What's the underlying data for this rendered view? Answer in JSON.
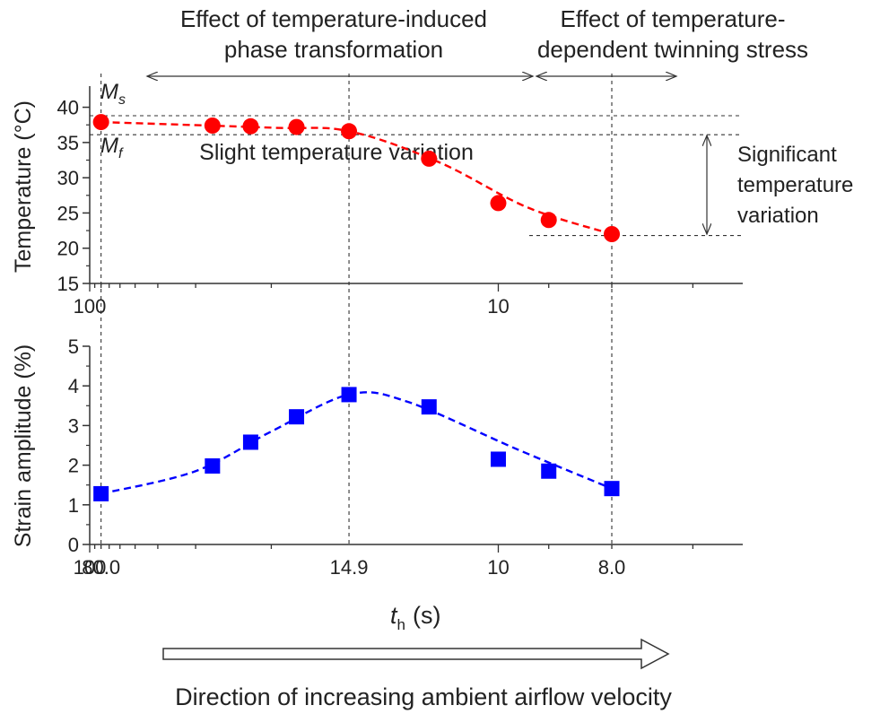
{
  "annotations": {
    "left_region": [
      "Effect of temperature-induced",
      "phase transformation"
    ],
    "right_region": [
      "Effect of temperature-",
      "dependent twinning stress"
    ],
    "ms_label": "M",
    "ms_sub": "s",
    "mf_label": "M",
    "mf_sub": "f",
    "slight": "Slight temperature variation",
    "significant": [
      "Significant",
      "temperature",
      "variation"
    ],
    "direction": "Direction of increasing ambient airflow velocity"
  },
  "chart_data": [
    {
      "type": "line",
      "ylabel": "Temperature (°C)",
      "xscale": "reciprocal",
      "xlim": [
        100,
        6.5
      ],
      "ylim": [
        15,
        43
      ],
      "yticks": [
        15,
        20,
        25,
        30,
        35,
        40
      ],
      "xtick_labels": [
        {
          "x": 100,
          "label": "100"
        },
        {
          "x": 10,
          "label": "10"
        }
      ],
      "series": [
        {
          "marker": "circle",
          "color": "#ff0000",
          "x": [
            80.0,
            27.0,
            22.0,
            18.0,
            14.9,
            11.8,
            10.0,
            9.0,
            8.0
          ],
          "y": [
            37.9,
            37.4,
            37.3,
            37.2,
            36.6,
            32.7,
            26.4,
            24.0,
            22.0
          ]
        }
      ],
      "reference_lines": {
        "Ms": 38.8,
        "Mf": 36.1,
        "min": 21.8
      }
    },
    {
      "type": "line",
      "ylabel": "Strain amplitude (%)",
      "xlabel": "t",
      "xlabel_sub": "h",
      "xlabel_unit": "(s)",
      "xscale": "reciprocal",
      "xlim": [
        100,
        6.5
      ],
      "ylim": [
        0,
        5
      ],
      "yticks": [
        0,
        1,
        2,
        3,
        4,
        5
      ],
      "xtick_labels": [
        {
          "x": 100,
          "label": "100"
        },
        {
          "x": 80.0,
          "label": "80.0"
        },
        {
          "x": 14.9,
          "label": "14.9"
        },
        {
          "x": 10,
          "label": "10"
        },
        {
          "x": 8.0,
          "label": "8.0"
        }
      ],
      "series": [
        {
          "marker": "square",
          "color": "#0000ff",
          "x": [
            80.0,
            27.0,
            22.0,
            18.0,
            14.9,
            11.8,
            10.0,
            9.0,
            8.0
          ],
          "y": [
            1.28,
            1.98,
            2.58,
            3.22,
            3.78,
            3.47,
            2.15,
            1.85,
            1.41
          ]
        }
      ]
    }
  ]
}
